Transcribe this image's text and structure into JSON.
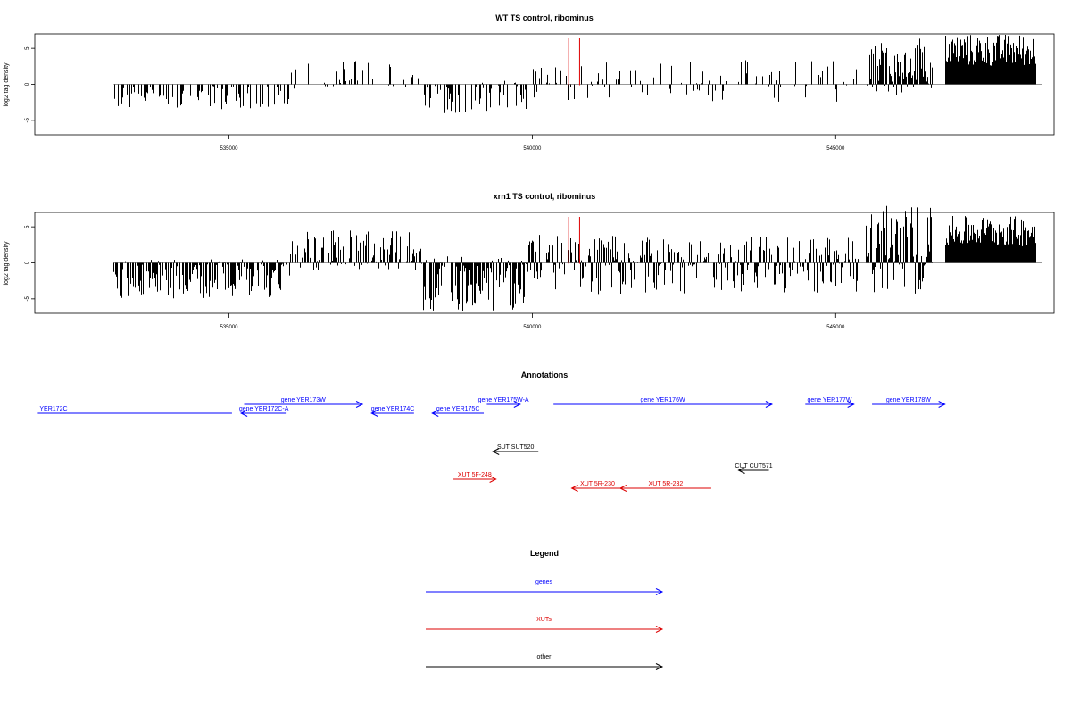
{
  "chart_data": [
    {
      "type": "bar",
      "title": "WT TS control, ribominus",
      "ylabel": "log2 tag density",
      "xlabel": "",
      "xlim": [
        531800,
        548600
      ],
      "ylim": [
        -7,
        7
      ],
      "x_ticks": [
        535000,
        540000,
        545000
      ],
      "x_tick_labels": [
        "535000",
        "540000",
        "545000"
      ],
      "y_ticks": [
        -5,
        0,
        5
      ],
      "y_tick_labels": [
        "-5",
        "0",
        "5"
      ],
      "baseline_extent": [
        533100,
        548400
      ],
      "markers": {
        "color": "#dd0000",
        "x": [
          540600,
          540780
        ],
        "y_top": 8
      },
      "segments": [
        {
          "start": 533100,
          "end": 536000,
          "min": -3.5,
          "max": 0,
          "density": 0.45
        },
        {
          "start": 536000,
          "end": 538200,
          "min": -0.8,
          "max": 3.5,
          "density": 0.25
        },
        {
          "start": 538200,
          "end": 539900,
          "min": -4,
          "max": 0.5,
          "density": 0.5
        },
        {
          "start": 539900,
          "end": 545400,
          "min": -2.5,
          "max": 3.5,
          "density": 0.3
        },
        {
          "start": 545500,
          "end": 546600,
          "min": -1.5,
          "max": 6.5,
          "density": 1
        },
        {
          "start": 546600,
          "end": 546800,
          "min": 0,
          "max": 0,
          "density": 0
        },
        {
          "start": 546800,
          "end": 548300,
          "min": 0.5,
          "max": 7,
          "density": 1
        }
      ]
    },
    {
      "type": "bar",
      "title": "xrn1 TS control, ribominus",
      "ylabel": "log2 tag density",
      "xlabel": "",
      "xlim": [
        531800,
        548600
      ],
      "ylim": [
        -7,
        7
      ],
      "x_ticks": [
        535000,
        540000,
        545000
      ],
      "x_tick_labels": [
        "535000",
        "540000",
        "545000"
      ],
      "y_ticks": [
        -5,
        0,
        5
      ],
      "y_tick_labels": [
        "-5",
        "0",
        "5"
      ],
      "baseline_extent": [
        533100,
        548400
      ],
      "markers": {
        "color": "#dd0000",
        "x": [
          540600,
          540780
        ],
        "y_top": 8
      },
      "segments": [
        {
          "start": 533100,
          "end": 536000,
          "min": -5,
          "max": 0.5,
          "density": 0.8
        },
        {
          "start": 536000,
          "end": 538200,
          "min": -1,
          "max": 4.5,
          "density": 0.7
        },
        {
          "start": 538200,
          "end": 539900,
          "min": -7,
          "max": 1,
          "density": 0.8
        },
        {
          "start": 539900,
          "end": 545400,
          "min": -4.5,
          "max": 4,
          "density": 0.75
        },
        {
          "start": 545500,
          "end": 546600,
          "min": -4.5,
          "max": 8,
          "density": 1
        },
        {
          "start": 546600,
          "end": 546800,
          "min": 0,
          "max": 0,
          "density": 0
        },
        {
          "start": 546800,
          "end": 548300,
          "min": 0.5,
          "max": 6.5,
          "density": 1
        }
      ]
    }
  ],
  "annotations": {
    "title": "Annotations",
    "items": [
      {
        "label": "YER172C",
        "start": 531850,
        "end": 535050,
        "dir": "none",
        "color": "#0000ff",
        "row": 1,
        "label_at": "left"
      },
      {
        "label": "gene YER172C-A",
        "start": 535200,
        "end": 535950,
        "dir": "left",
        "color": "#0000ff",
        "row": 1
      },
      {
        "label": "gene YER173W",
        "start": 535250,
        "end": 537200,
        "dir": "right",
        "color": "#0000ff",
        "row": 0
      },
      {
        "label": "gene YER174C",
        "start": 537350,
        "end": 538050,
        "dir": "left",
        "color": "#0000ff",
        "row": 1
      },
      {
        "label": "gene YER175C",
        "start": 538350,
        "end": 539200,
        "dir": "left",
        "color": "#0000ff",
        "row": 1
      },
      {
        "label": "gene YER175W-A",
        "start": 539250,
        "end": 539800,
        "dir": "right",
        "color": "#0000ff",
        "row": 0
      },
      {
        "label": "gene YER176W",
        "start": 540350,
        "end": 543950,
        "dir": "right",
        "color": "#0000ff",
        "row": 0
      },
      {
        "label": "gene YER177W",
        "start": 544500,
        "end": 545300,
        "dir": "right",
        "color": "#0000ff",
        "row": 0
      },
      {
        "label": "gene YER178W",
        "start": 545600,
        "end": 546800,
        "dir": "right",
        "color": "#0000ff",
        "row": 0
      },
      {
        "label": "SUT SUT520",
        "start": 539350,
        "end": 540100,
        "dir": "left",
        "color": "#000000",
        "row": 2
      },
      {
        "label": "CUT CUT571",
        "start": 543400,
        "end": 543900,
        "dir": "left",
        "color": "#000000",
        "row": 3
      },
      {
        "label": "XUT 5F-248",
        "start": 538700,
        "end": 539400,
        "dir": "right",
        "color": "#dd0000",
        "row": 4
      },
      {
        "label": "XUT 5R-230",
        "start": 540650,
        "end": 541500,
        "dir": "left",
        "color": "#dd0000",
        "row": 5
      },
      {
        "label": "XUT 5R-232",
        "start": 541450,
        "end": 542950,
        "dir": "left",
        "color": "#dd0000",
        "row": 5
      }
    ]
  },
  "legend": {
    "title": "Legend",
    "items": [
      {
        "label": "genes",
        "color": "#0000ff"
      },
      {
        "label": "XUTs",
        "color": "#dd0000"
      },
      {
        "label": "other",
        "color": "#000000"
      }
    ]
  }
}
